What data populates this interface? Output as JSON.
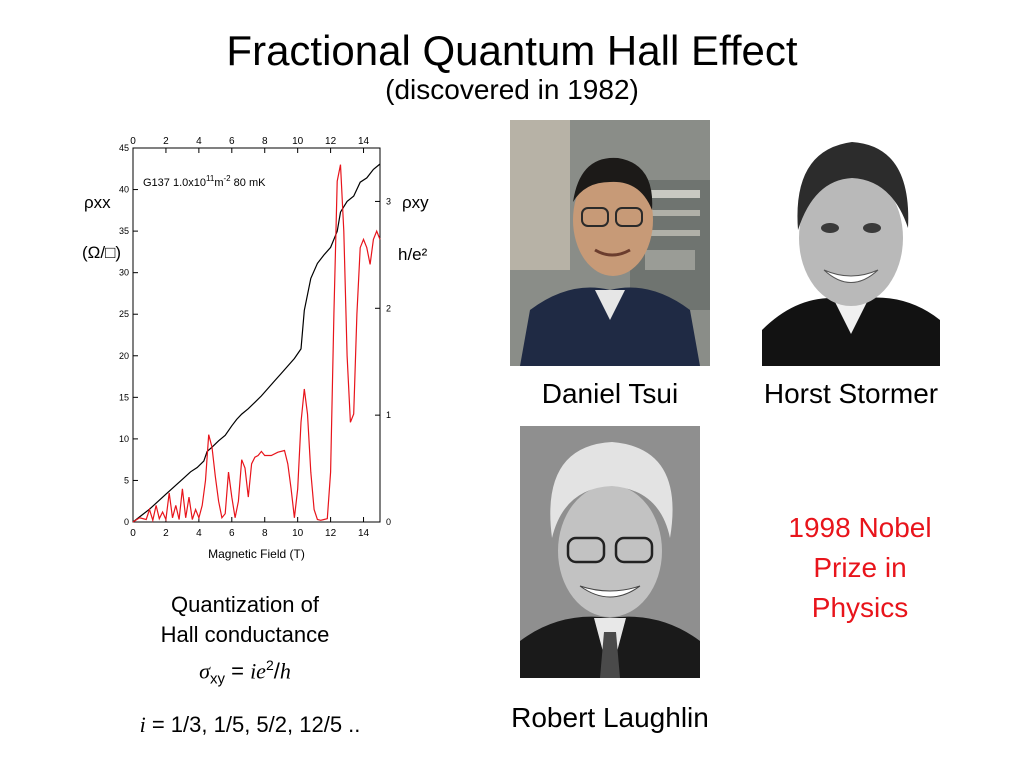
{
  "slide": {
    "title": "Fractional Quantum Hall Effect",
    "subtitle": "(discovered in 1982)"
  },
  "chart": {
    "sample_label": "G137  1.0x10",
    "sample_exp": "11",
    "sample_unit": "m",
    "sample_unit_exp": "-2",
    "temperature": "80 mK",
    "left_axis_label": "ρxx",
    "left_axis_sub": "(Ω/□)",
    "right_axis_label": "ρxy",
    "right_axis_sub": "h/e²",
    "xlabel": "Magnetic Field  (T)"
  },
  "chart_data": {
    "type": "line",
    "xlabel": "Magnetic Field  (T)",
    "xlim": [
      0,
      15
    ],
    "x_ticks": [
      "0",
      "2",
      "4",
      "6",
      "8",
      "10",
      "12",
      "14"
    ],
    "ylim_left": [
      0,
      45
    ],
    "y_ticks_left": [
      "0",
      "5",
      "10",
      "15",
      "20",
      "25",
      "30",
      "35",
      "40",
      "45"
    ],
    "ylim_right": [
      0,
      3.5
    ],
    "y_ticks_right": [
      "0",
      "1",
      "2",
      "3"
    ],
    "series": [
      {
        "name": "ρxy",
        "color": "#000000",
        "axis": "right",
        "x": [
          0,
          0.5,
          1.0,
          1.5,
          2.0,
          2.5,
          3.0,
          3.5,
          3.9,
          4.3,
          4.5,
          4.8,
          5.2,
          5.6,
          6.0,
          6.3,
          6.6,
          7.0,
          7.4,
          7.8,
          8.2,
          8.6,
          9.0,
          9.4,
          9.8,
          10.2,
          10.4,
          10.8,
          11.2,
          11.6,
          12.0,
          12.4,
          12.6,
          13.0,
          13.4,
          13.8,
          14.2,
          14.6,
          15.0
        ],
        "y": [
          0,
          0.06,
          0.12,
          0.19,
          0.26,
          0.33,
          0.4,
          0.47,
          0.51,
          0.57,
          0.66,
          0.7,
          0.76,
          0.81,
          0.9,
          0.96,
          1.01,
          1.06,
          1.12,
          1.18,
          1.25,
          1.32,
          1.39,
          1.46,
          1.53,
          1.62,
          1.98,
          2.28,
          2.42,
          2.5,
          2.57,
          2.72,
          2.9,
          3.0,
          3.05,
          3.18,
          3.22,
          3.3,
          3.35
        ]
      },
      {
        "name": "ρxx",
        "color": "#e8141b",
        "axis": "left",
        "x": [
          0,
          0.4,
          0.8,
          1.0,
          1.2,
          1.4,
          1.6,
          1.8,
          2.0,
          2.2,
          2.4,
          2.6,
          2.8,
          3.0,
          3.2,
          3.4,
          3.6,
          3.8,
          4.0,
          4.2,
          4.4,
          4.6,
          4.8,
          5.0,
          5.2,
          5.4,
          5.6,
          5.8,
          6.0,
          6.2,
          6.4,
          6.6,
          6.8,
          7.0,
          7.2,
          7.4,
          7.6,
          7.8,
          8.0,
          8.4,
          8.8,
          9.2,
          9.4,
          9.6,
          9.8,
          10.0,
          10.2,
          10.4,
          10.6,
          10.8,
          11.0,
          11.2,
          11.4,
          11.6,
          11.8,
          12.0,
          12.2,
          12.4,
          12.6,
          12.8,
          13.0,
          13.2,
          13.4,
          13.6,
          13.8,
          14.0,
          14.2,
          14.4,
          14.6,
          14.8,
          15.0
        ],
        "y": [
          0,
          0.5,
          0.3,
          1.5,
          0.2,
          2.0,
          0.4,
          1.2,
          0.3,
          3.5,
          0.5,
          2.0,
          0.3,
          4.0,
          0.5,
          3.0,
          0.3,
          1.5,
          0.5,
          2.0,
          5.0,
          10.5,
          9.0,
          5.5,
          2.5,
          0.5,
          1.0,
          6.0,
          3.0,
          0.5,
          2.5,
          7.5,
          6.5,
          3.0,
          7.0,
          7.8,
          8.0,
          8.5,
          8.0,
          8.0,
          8.4,
          8.6,
          7.0,
          4.0,
          0.5,
          4.0,
          12.0,
          16.0,
          13.0,
          6.0,
          1.5,
          0.3,
          0.2,
          0.3,
          0.4,
          6.0,
          25.0,
          41.0,
          43.0,
          35.0,
          20.0,
          12.0,
          13.0,
          25.0,
          33.0,
          34.0,
          33.0,
          31.0,
          34.0,
          35.0,
          34.0
        ]
      }
    ],
    "grid": false,
    "legend": "none"
  },
  "captions": {
    "line1": "Quantization of",
    "line2": "Hall conductance",
    "formula_sigma": "σ",
    "formula_sub": "xy",
    "formula_eq": " = ",
    "formula_ie": "ie",
    "formula_sup": "2",
    "formula_slash": "/",
    "formula_h": "h",
    "i_var": "i",
    "i_values": " = 1/3, 1/5, 5/2, 12/5 .."
  },
  "people": {
    "tsui": "Daniel Tsui",
    "stormer": "Horst Stormer",
    "laughlin": "Robert Laughlin"
  },
  "nobel": {
    "line1": "1998 Nobel",
    "line2": "Prize in",
    "line3": "Physics",
    "color": "#e8141b"
  }
}
